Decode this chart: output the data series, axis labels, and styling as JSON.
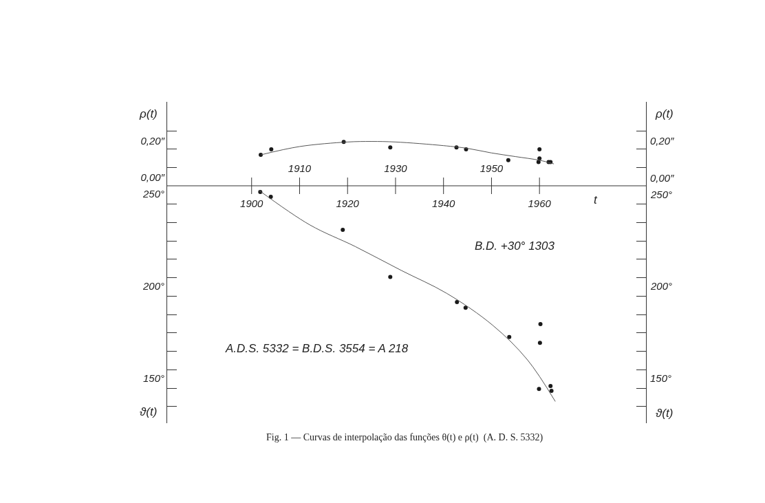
{
  "chart_data": [
    {
      "type": "scatter",
      "ylabel": "ρ(t)",
      "y2label": "ρ(t)",
      "xlim": [
        1882.4,
        1982.2
      ],
      "ylim": [
        0,
        0.46
      ],
      "y2lim": [
        0,
        0.46
      ],
      "xticks": [
        {
          "value": 1900,
          "label": null
        },
        {
          "value": 1910,
          "label": "1910"
        },
        {
          "value": 1920,
          "label": null
        },
        {
          "value": 1930,
          "label": "1930"
        },
        {
          "value": 1940,
          "label": null
        },
        {
          "value": 1950,
          "label": "1950"
        },
        {
          "value": 1960,
          "label": null
        }
      ],
      "yticks": [
        {
          "value": 0,
          "label": "0,00″"
        },
        {
          "value": 0.1,
          "label": null
        },
        {
          "value": 0.2,
          "label": "0,20″"
        },
        {
          "value": 0.3,
          "label": null
        }
      ],
      "y2ticks": [
        {
          "value": 0,
          "label": "0,00″"
        },
        {
          "value": 0.1,
          "label": null
        },
        {
          "value": 0.2,
          "label": "0,20″"
        },
        {
          "value": 0.3,
          "label": null
        }
      ],
      "line_style": "solid",
      "series": [
        {
          "color": "#1a1a1a",
          "marker": "circle",
          "x": [
            1901.9,
            1904.1,
            1919.2,
            1928.9,
            1942.7,
            1944.7,
            1953.5,
            1960.0,
            1960.0,
            1959.8,
            1961.9,
            1962.3
          ],
          "values": [
            0.17,
            0.2,
            0.24,
            0.21,
            0.21,
            0.2,
            0.14,
            0.2,
            0.15,
            0.13,
            0.13,
            0.13
          ]
        },
        {
          "type": "line",
          "color": "#555555",
          "x": [
            1902,
            1910,
            1920,
            1925,
            1930,
            1940,
            1945,
            1950,
            1955,
            1960,
            1963
          ],
          "values": [
            0.17,
            0.215,
            0.24,
            0.243,
            0.24,
            0.22,
            0.205,
            0.18,
            0.16,
            0.14,
            0.12
          ]
        }
      ]
    },
    {
      "type": "scatter",
      "ylabel": "ϑ(t)",
      "y2label": "ϑ(t)",
      "xlabel": "t",
      "xlim": [
        1882.4,
        1982.2
      ],
      "ylim": [
        121,
        250
      ],
      "y2lim": [
        121,
        250
      ],
      "xticks": [
        {
          "value": 1900,
          "label": "1900"
        },
        {
          "value": 1910,
          "label": null
        },
        {
          "value": 1920,
          "label": "1920"
        },
        {
          "value": 1930,
          "label": null
        },
        {
          "value": 1940,
          "label": "1940"
        },
        {
          "value": 1950,
          "label": null
        },
        {
          "value": 1960,
          "label": "1960"
        }
      ],
      "yticks": [
        {
          "value": 130,
          "label": null
        },
        {
          "value": 140,
          "label": null
        },
        {
          "value": 150,
          "label": "150°"
        },
        {
          "value": 160,
          "label": null
        },
        {
          "value": 170,
          "label": null
        },
        {
          "value": 180,
          "label": null
        },
        {
          "value": 190,
          "label": null
        },
        {
          "value": 200,
          "label": "200°"
        },
        {
          "value": 210,
          "label": null
        },
        {
          "value": 220,
          "label": null
        },
        {
          "value": 230,
          "label": null
        },
        {
          "value": 240,
          "label": null
        },
        {
          "value": 250,
          "label": "250°"
        }
      ],
      "y2ticks": [
        {
          "value": 130,
          "label": null
        },
        {
          "value": 140,
          "label": null
        },
        {
          "value": 150,
          "label": "150°"
        },
        {
          "value": 160,
          "label": null
        },
        {
          "value": 170,
          "label": null
        },
        {
          "value": 180,
          "label": null
        },
        {
          "value": 190,
          "label": null
        },
        {
          "value": 200,
          "label": "200°"
        },
        {
          "value": 210,
          "label": null
        },
        {
          "value": 220,
          "label": null
        },
        {
          "value": 230,
          "label": null
        },
        {
          "value": 240,
          "label": null
        },
        {
          "value": 250,
          "label": "250°"
        }
      ],
      "line_style": "solid",
      "annotations": [
        "B.D. +30° 1303",
        "A.D.S. 5332 = B.D.S. 3554 = A 218",
        "Fig. 1 — Curvas de interpolação das funções θ(t) e ρ(t)  (A. D. S. 5332)"
      ],
      "series": [
        {
          "color": "#1a1a1a",
          "marker": "circle",
          "x": [
            1901.8,
            1904.0,
            1919.0,
            1928.9,
            1942.8,
            1944.6,
            1953.7,
            1960.2,
            1960.1,
            1959.9,
            1962.3,
            1962.5
          ],
          "values": [
            246.6,
            244.0,
            226.1,
            200.5,
            186.8,
            183.7,
            167.8,
            174.8,
            164.7,
            139.6,
            141.2,
            138.6
          ]
        },
        {
          "type": "line",
          "color": "#555555",
          "x": [
            1901.5,
            1912.1,
            1921.6,
            1931.2,
            1940.7,
            1950.3,
            1957.5,
            1963.3
          ],
          "values": [
            247.6,
            228.8,
            217.0,
            204.0,
            191.5,
            174.1,
            155.4,
            132.8
          ]
        }
      ]
    }
  ]
}
